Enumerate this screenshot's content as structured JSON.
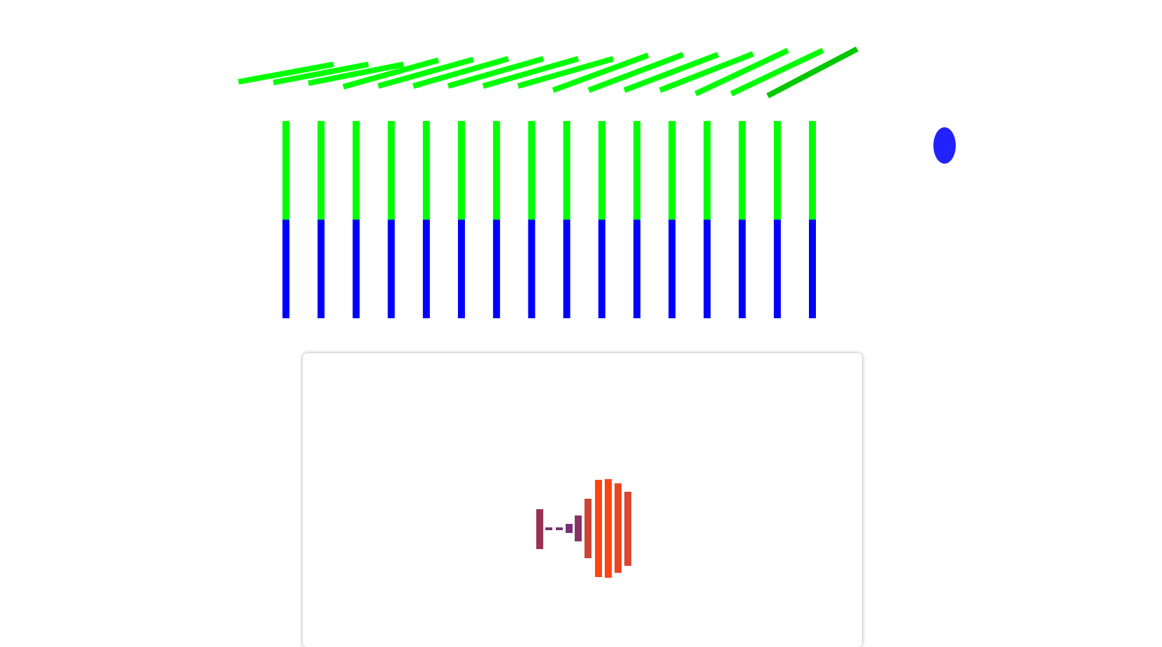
{
  "scene": {
    "slanted_bar_color": "#00ff00",
    "last_slanted_bar_color": "#00c800",
    "vertical_top_color": "#00ff00",
    "vertical_bottom_color": "#0000ff",
    "vertical_bar_count": 16,
    "slanted_bar_count": 16,
    "dot_color": "#2222ff",
    "card": {
      "background": "#ffffff",
      "bar_colors": [
        "#993355",
        "#773377",
        "#773377",
        "#773377",
        "#883366",
        "#cc4433",
        "#ff4411",
        "#ff4411",
        "#ee4422",
        "#dd4433"
      ]
    }
  }
}
